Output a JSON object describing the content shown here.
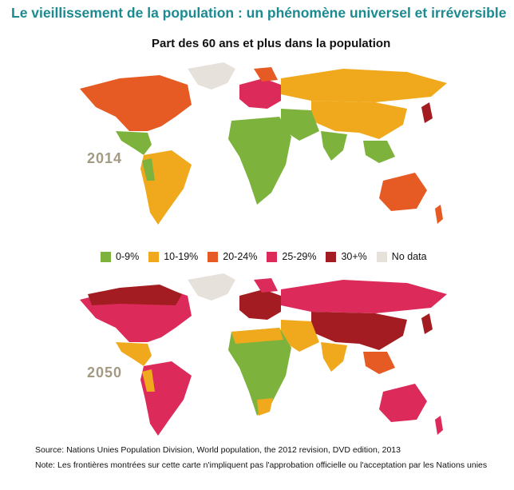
{
  "title": "Le vieillissement de la population : un phénomène universel et irréversible",
  "subtitle": "Part des 60 ans et plus dans la population",
  "maps": [
    {
      "year": "2014"
    },
    {
      "year": "2050"
    }
  ],
  "legend": [
    {
      "label": "0-9%",
      "color": "#7db33c"
    },
    {
      "label": "10-19%",
      "color": "#f0a91c"
    },
    {
      "label": "20-24%",
      "color": "#e65a24"
    },
    {
      "label": "25-29%",
      "color": "#dc2b5a"
    },
    {
      "label": "30+%",
      "color": "#a31c21"
    },
    {
      "label": "No data",
      "color": "#e6e1da"
    }
  ],
  "source": "Source: Nations Unies Population Division, World population, the 2012 revision, DVD edition, 2013",
  "note": "Note: Les frontières montrées sur cette carte n'impliquent pas l'approbation officielle ou l'acceptation par les Nations unies"
}
